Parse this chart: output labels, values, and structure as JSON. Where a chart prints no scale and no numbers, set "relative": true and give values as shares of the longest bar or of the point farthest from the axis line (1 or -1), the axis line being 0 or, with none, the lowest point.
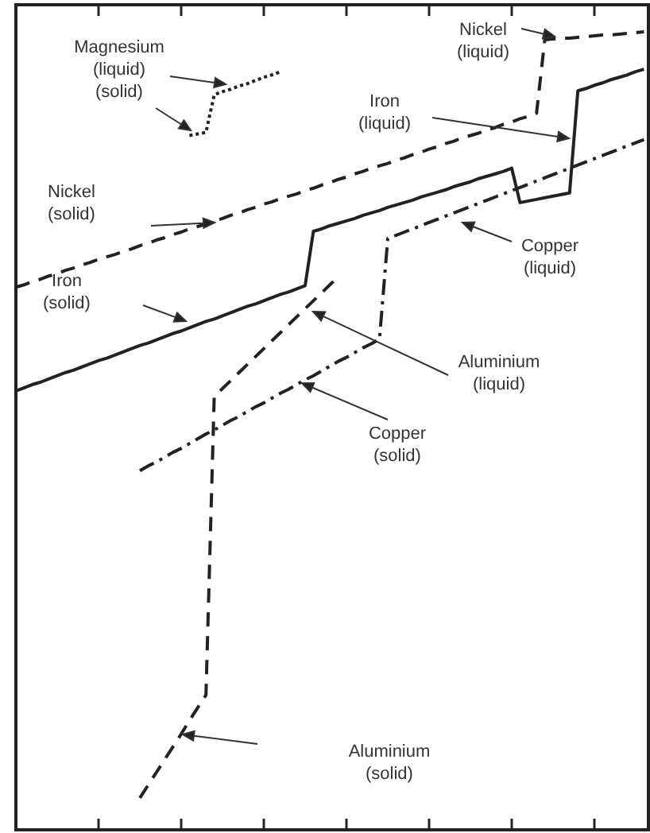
{
  "chart_data": {
    "type": "line",
    "relative": true,
    "categories": [
      null,
      null,
      null,
      null,
      null,
      null,
      null,
      null,
      null,
      null,
      null,
      null,
      null,
      null,
      null,
      null,
      null,
      null,
      null,
      null,
      null,
      null,
      null,
      null,
      null,
      null,
      null,
      null,
      null,
      null,
      null,
      null,
      null,
      null,
      null,
      null,
      null,
      null,
      null,
      null,
      null,
      null,
      null,
      null,
      null,
      null,
      null,
      null,
      null,
      null,
      null,
      null,
      null,
      null,
      null,
      null,
      null,
      null,
      null,
      null,
      null,
      null,
      null,
      null,
      null,
      null,
      null,
      null,
      null,
      null,
      null,
      null,
      null,
      null,
      null,
      null,
      null
    ],
    "series": [
      {
        "color": "#222222",
        "line_style": "dotted",
        "values": [
          null,
          null,
          null,
          null,
          null,
          null,
          null,
          null,
          null,
          null,
          null,
          null,
          null,
          null,
          null,
          null,
          null,
          null,
          null,
          null,
          null,
          0.87,
          0.872,
          0.874,
          0.921,
          0.925,
          0.928,
          0.932,
          0.935,
          0.939,
          0.943,
          0.946,
          0.95,
          null,
          null,
          null,
          null,
          null,
          null,
          null,
          null,
          null,
          null,
          null,
          null,
          null,
          null,
          null,
          null,
          null,
          null,
          null,
          null,
          null,
          null,
          null,
          null,
          null,
          null,
          null,
          null,
          null,
          null,
          null,
          null,
          null,
          null,
          null,
          null,
          null,
          null,
          null,
          null,
          null,
          null,
          null,
          null
        ]
      },
      {
        "color": "#222222",
        "line_style": "dashed",
        "values": [
          0.68,
          0.683,
          0.687,
          0.69,
          0.694,
          0.697,
          0.701,
          0.704,
          0.708,
          0.711,
          0.715,
          0.718,
          0.721,
          0.725,
          0.728,
          0.732,
          0.735,
          0.739,
          0.742,
          0.746,
          0.749,
          0.753,
          0.756,
          0.759,
          0.763,
          0.766,
          0.77,
          0.773,
          0.777,
          0.78,
          0.784,
          0.787,
          0.791,
          0.794,
          0.797,
          0.801,
          0.804,
          0.808,
          0.811,
          0.815,
          0.818,
          0.822,
          0.825,
          0.829,
          0.832,
          0.835,
          0.839,
          0.842,
          0.846,
          0.849,
          0.853,
          0.856,
          0.86,
          0.863,
          0.867,
          0.87,
          0.873,
          0.877,
          0.88,
          0.884,
          0.887,
          0.891,
          0.894,
          0.898,
          0.99,
          0.991,
          0.992,
          0.992,
          0.993,
          0.994,
          0.995,
          0.996,
          0.996,
          0.997,
          0.998,
          0.999,
          1.0
        ]
      },
      {
        "color": "#222222",
        "line_style": "solid",
        "values": [
          0.55,
          0.554,
          0.558,
          0.561,
          0.565,
          0.569,
          0.573,
          0.576,
          0.58,
          0.584,
          0.588,
          0.591,
          0.595,
          0.599,
          0.603,
          0.607,
          0.61,
          0.614,
          0.618,
          0.622,
          0.625,
          0.629,
          0.633,
          0.637,
          0.64,
          0.644,
          0.648,
          0.652,
          0.656,
          0.659,
          0.663,
          0.667,
          0.671,
          0.674,
          0.678,
          0.682,
          0.75,
          0.753,
          0.757,
          0.76,
          0.763,
          0.766,
          0.77,
          0.773,
          0.776,
          0.78,
          0.783,
          0.786,
          0.789,
          0.793,
          0.796,
          0.799,
          0.802,
          0.806,
          0.809,
          0.812,
          0.816,
          0.819,
          0.822,
          0.825,
          0.829,
          0.786,
          0.788,
          0.79,
          0.792,
          0.794,
          0.796,
          0.798,
          0.926,
          0.929,
          0.933,
          0.936,
          0.94,
          0.943,
          0.946,
          0.95,
          0.953
        ]
      },
      {
        "color": "#222222",
        "line_style": "dashdot",
        "values": [
          null,
          null,
          null,
          null,
          null,
          null,
          null,
          null,
          null,
          null,
          null,
          null,
          null,
          null,
          null,
          0.45,
          0.456,
          0.461,
          0.467,
          0.473,
          0.478,
          0.484,
          0.49,
          0.496,
          0.501,
          0.507,
          0.513,
          0.518,
          0.524,
          0.53,
          0.535,
          0.541,
          0.547,
          0.552,
          0.558,
          0.564,
          0.569,
          0.575,
          0.581,
          0.587,
          0.592,
          0.598,
          0.604,
          0.609,
          0.615,
          0.741,
          0.745,
          0.749,
          0.753,
          0.757,
          0.761,
          0.765,
          0.769,
          0.773,
          0.777,
          0.781,
          0.785,
          0.789,
          0.793,
          0.797,
          0.801,
          0.805,
          0.809,
          0.813,
          0.817,
          0.821,
          0.825,
          0.829,
          0.833,
          0.837,
          0.841,
          0.845,
          0.849,
          0.853,
          0.857,
          0.861,
          0.865
        ]
      },
      {
        "color": "#222222",
        "line_style": "dashed",
        "values": [
          null,
          null,
          null,
          null,
          null,
          null,
          null,
          null,
          null,
          null,
          null,
          null,
          null,
          null,
          null,
          0.04,
          0.056,
          0.072,
          0.088,
          0.104,
          0.12,
          0.137,
          0.153,
          0.169,
          0.543,
          0.553,
          0.563,
          0.573,
          0.583,
          0.593,
          0.603,
          0.613,
          0.623,
          0.633,
          0.643,
          0.653,
          0.663,
          0.673,
          0.683,
          0.693,
          null,
          null,
          null,
          null,
          null,
          null,
          null,
          null,
          null,
          null,
          null,
          null,
          null,
          null,
          null,
          null,
          null,
          null,
          null,
          null,
          null,
          null,
          null,
          null,
          null,
          null,
          null,
          null,
          null,
          null,
          null,
          null,
          null,
          null,
          null,
          null,
          null
        ]
      }
    ],
    "annotations": [
      "Magnesium\n(liquid)",
      "(solid)",
      "Nickel\n(solid)",
      "Nickel\n(liquid)",
      "Iron\n(liquid)",
      "Iron\n(solid)",
      "Copper\n(liquid)",
      "Aluminium\n(liquid)",
      "Copper\n(solid)",
      "Aluminium\n(solid)"
    ]
  }
}
